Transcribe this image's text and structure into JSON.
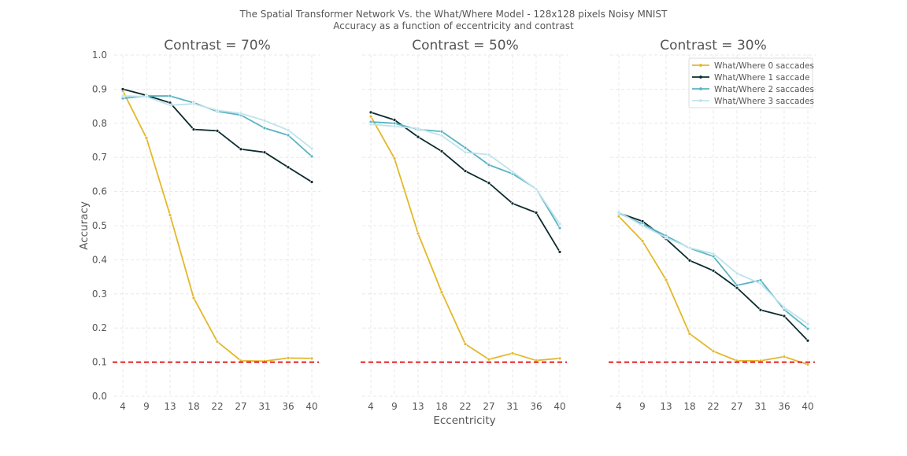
{
  "chart_data": {
    "type": "line",
    "title": "The Spatial Transformer Network Vs. the What/Where Model - 128x128 pixels Noisy MNIST",
    "subtitle": "Accuracy as a function of eccentricity and contrast",
    "xlabel": "Eccentricity",
    "ylabel": "Accuracy",
    "x": [
      4,
      9,
      13,
      18,
      22,
      27,
      31,
      36,
      40
    ],
    "x_tick_labels": [
      "4",
      "9",
      "13",
      "18",
      "22",
      "27",
      "31",
      "36",
      "40"
    ],
    "ylim": [
      0.0,
      1.0
    ],
    "y_ticks": [
      0.0,
      0.1,
      0.2,
      0.3,
      0.4,
      0.5,
      0.6,
      0.7,
      0.8,
      0.9,
      1.0
    ],
    "y_tick_labels": [
      "0.0",
      "0.1",
      "0.2",
      "0.3",
      "0.4",
      "0.5",
      "0.6",
      "0.7",
      "0.8",
      "0.9",
      "1.0"
    ],
    "grid": true,
    "chance_level": 0.1,
    "legend": {
      "placement": "top-right",
      "entries": [
        "What/Where 0 saccades",
        "What/Where 1 saccade",
        "What/Where 2 saccades",
        "What/Where 3 saccades"
      ]
    },
    "series_colors": [
      "#e3b82a",
      "#0c2b2f",
      "#5ab3c2",
      "#bfe3ec"
    ],
    "chance_color": "#e00000",
    "panels": [
      {
        "title": "Contrast = 70%",
        "series": [
          {
            "name": "What/Where 0 saccades",
            "values": [
              0.895,
              0.757,
              0.531,
              0.288,
              0.16,
              0.104,
              0.103,
              0.112,
              0.111
            ]
          },
          {
            "name": "What/Where 1 saccade",
            "values": [
              0.9,
              0.882,
              0.86,
              0.782,
              0.778,
              0.724,
              0.715,
              0.671,
              0.628
            ]
          },
          {
            "name": "What/Where 2 saccades",
            "values": [
              0.873,
              0.88,
              0.88,
              0.86,
              0.835,
              0.824,
              0.786,
              0.765,
              0.703
            ]
          },
          {
            "name": "What/Where 3 saccades",
            "values": [
              0.88,
              0.878,
              0.853,
              0.857,
              0.838,
              0.829,
              0.808,
              0.78,
              0.726
            ]
          }
        ]
      },
      {
        "title": "Contrast = 50%",
        "series": [
          {
            "name": "What/Where 0 saccades",
            "values": [
              0.82,
              0.697,
              0.477,
              0.305,
              0.153,
              0.108,
              0.126,
              0.105,
              0.111
            ]
          },
          {
            "name": "What/Where 1 saccade",
            "values": [
              0.832,
              0.81,
              0.76,
              0.718,
              0.66,
              0.625,
              0.565,
              0.538,
              0.423
            ]
          },
          {
            "name": "What/Where 2 saccades",
            "values": [
              0.804,
              0.8,
              0.782,
              0.776,
              0.728,
              0.678,
              0.652,
              0.608,
              0.493
            ]
          },
          {
            "name": "What/Where 3 saccades",
            "values": [
              0.797,
              0.791,
              0.785,
              0.764,
              0.715,
              0.708,
              0.658,
              0.607,
              0.505
            ]
          }
        ]
      },
      {
        "title": "Contrast = 30%",
        "series": [
          {
            "name": "What/Where 0 saccades",
            "values": [
              0.527,
              0.455,
              0.341,
              0.183,
              0.132,
              0.104,
              0.104,
              0.116,
              0.093
            ]
          },
          {
            "name": "What/Where 1 saccade",
            "values": [
              0.537,
              0.513,
              0.461,
              0.398,
              0.368,
              0.318,
              0.253,
              0.235,
              0.163
            ]
          },
          {
            "name": "What/Where 2 saccades",
            "values": [
              0.537,
              0.505,
              0.47,
              0.434,
              0.41,
              0.325,
              0.34,
              0.254,
              0.198
            ]
          },
          {
            "name": "What/Where 3 saccades",
            "values": [
              0.54,
              0.5,
              0.465,
              0.435,
              0.418,
              0.36,
              0.33,
              0.26,
              0.212
            ]
          }
        ]
      }
    ]
  }
}
